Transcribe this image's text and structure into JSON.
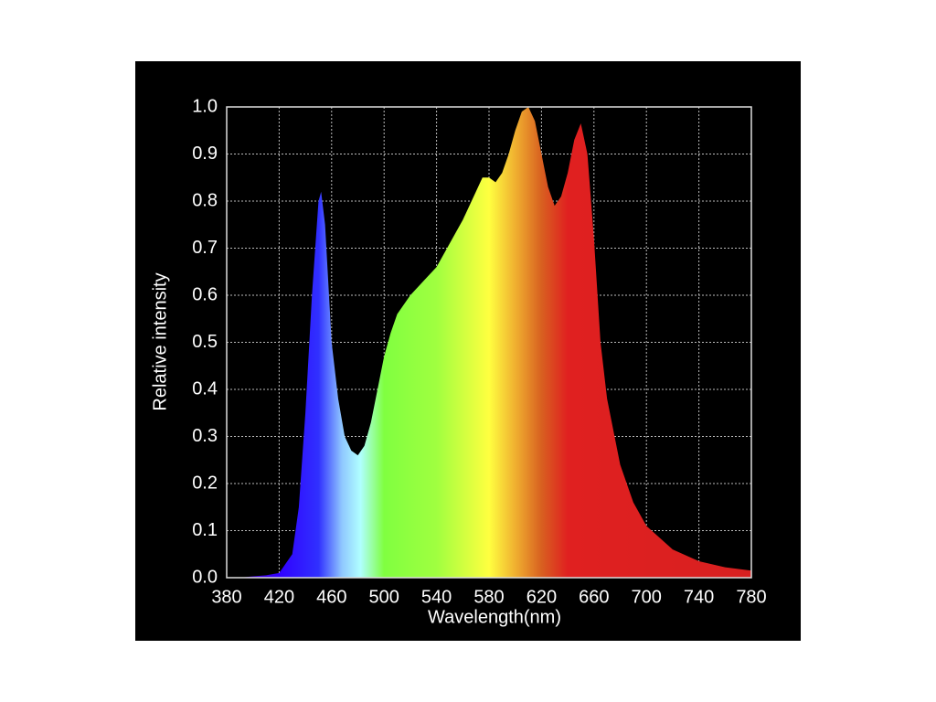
{
  "chart_data": {
    "type": "area",
    "xlabel": "Wavelength(nm)",
    "ylabel": "Relative intensity",
    "x": [
      380,
      390,
      400,
      410,
      420,
      430,
      435,
      440,
      445,
      450,
      452,
      455,
      460,
      465,
      470,
      475,
      480,
      485,
      490,
      495,
      500,
      505,
      510,
      520,
      530,
      540,
      550,
      560,
      570,
      575,
      580,
      585,
      590,
      595,
      600,
      605,
      610,
      615,
      620,
      625,
      630,
      635,
      640,
      645,
      650,
      655,
      660,
      665,
      670,
      680,
      690,
      700,
      720,
      740,
      760,
      780
    ],
    "values": [
      0,
      0,
      0.003,
      0.005,
      0.01,
      0.05,
      0.15,
      0.35,
      0.6,
      0.8,
      0.82,
      0.75,
      0.5,
      0.38,
      0.3,
      0.27,
      0.26,
      0.28,
      0.33,
      0.4,
      0.47,
      0.52,
      0.56,
      0.6,
      0.63,
      0.66,
      0.71,
      0.76,
      0.82,
      0.85,
      0.85,
      0.84,
      0.86,
      0.9,
      0.95,
      0.99,
      1.0,
      0.97,
      0.9,
      0.83,
      0.79,
      0.81,
      0.86,
      0.93,
      0.965,
      0.9,
      0.72,
      0.5,
      0.38,
      0.24,
      0.16,
      0.11,
      0.06,
      0.035,
      0.022,
      0.015
    ],
    "xlim": [
      380,
      780
    ],
    "xticks": [
      380,
      420,
      460,
      500,
      540,
      580,
      620,
      660,
      700,
      740,
      780
    ],
    "ylim": [
      0,
      1
    ],
    "yticks": [
      {
        "value": 0,
        "label": "0.0"
      },
      0.1,
      0.2,
      0.3,
      0.4,
      0.5,
      0.6,
      0.7,
      0.8,
      0.9,
      {
        "value": 1,
        "label": "1.0"
      }
    ],
    "grid": true
  }
}
